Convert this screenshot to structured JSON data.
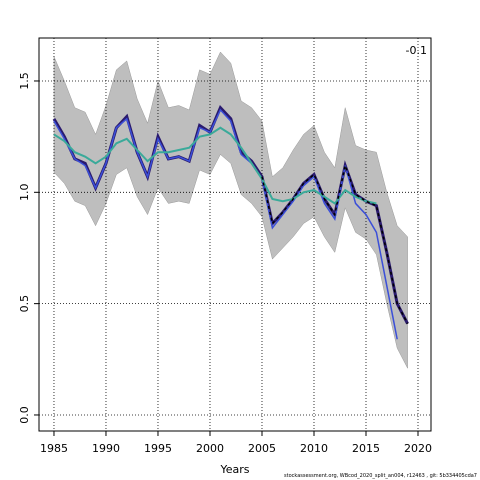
{
  "chart_data": {
    "type": "line",
    "annotation": "-0.1",
    "xlabel": "Years",
    "footer": "stockassessment.org, WBcod_2020_split_an004, r12463 , git: 5b334405cda7",
    "x": [
      1985,
      1986,
      1987,
      1988,
      1989,
      1990,
      1991,
      1992,
      1993,
      1994,
      1995,
      1996,
      1997,
      1998,
      1999,
      2000,
      2001,
      2002,
      2003,
      2004,
      2005,
      2006,
      2007,
      2008,
      2009,
      2010,
      2011,
      2012,
      2013,
      2014,
      2015,
      2016,
      2017,
      2018,
      2019
    ],
    "xlim": [
      1983.56,
      2021.25
    ],
    "xticks": [
      1985,
      1990,
      1995,
      2000,
      2005,
      2010,
      2015,
      2020
    ],
    "ylim": [
      -0.072,
      1.693
    ],
    "yticks": [
      {
        "value": 0,
        "label": "0.0"
      },
      {
        "value": 0.5,
        "label": "0.5"
      },
      {
        "value": 1,
        "label": "1.0"
      },
      {
        "value": 1.5,
        "label": "1.5"
      }
    ],
    "grid": true,
    "band": {
      "color": "#bebebe",
      "upper": [
        1.61,
        1.5,
        1.38,
        1.36,
        1.26,
        1.39,
        1.55,
        1.59,
        1.42,
        1.31,
        1.5,
        1.38,
        1.39,
        1.37,
        1.55,
        1.53,
        1.63,
        1.58,
        1.41,
        1.38,
        1.32,
        1.07,
        1.11,
        1.19,
        1.26,
        1.3,
        1.18,
        1.11,
        1.38,
        1.21,
        1.19,
        1.18,
        1.0,
        0.85,
        0.8
      ],
      "lower": [
        1.09,
        1.04,
        0.96,
        0.94,
        0.85,
        0.95,
        1.08,
        1.11,
        0.98,
        0.9,
        1.02,
        0.95,
        0.96,
        0.95,
        1.1,
        1.08,
        1.17,
        1.13,
        0.99,
        0.95,
        0.89,
        0.7,
        0.75,
        0.8,
        0.86,
        0.89,
        0.8,
        0.73,
        0.93,
        0.82,
        0.79,
        0.72,
        0.5,
        0.3,
        0.21
      ]
    },
    "series": [
      {
        "color": "#2a1a6e",
        "width": 3,
        "dash": false,
        "values": [
          1.33,
          1.25,
          1.15,
          1.13,
          1.02,
          1.13,
          1.29,
          1.34,
          1.18,
          1.07,
          1.25,
          1.15,
          1.16,
          1.14,
          1.3,
          1.27,
          1.38,
          1.33,
          1.18,
          1.14,
          1.07,
          0.86,
          0.91,
          0.97,
          1.04,
          1.08,
          0.97,
          0.9,
          1.12,
          0.99,
          0.96,
          0.94,
          0.73,
          0.5,
          0.41
        ]
      },
      {
        "color": "#3b4fd8",
        "width": 1.5,
        "dash": false,
        "values": [
          1.32,
          1.24,
          1.15,
          1.12,
          1.02,
          1.13,
          1.29,
          1.33,
          1.18,
          1.07,
          1.24,
          1.15,
          1.16,
          1.14,
          1.29,
          1.27,
          1.37,
          1.32,
          1.17,
          1.13,
          1.06,
          0.84,
          0.9,
          0.96,
          1.03,
          1.07,
          0.95,
          0.88,
          1.12,
          0.95,
          0.9,
          0.82,
          0.58,
          0.34,
          null
        ]
      },
      {
        "color": "#3aaa9a",
        "width": 2,
        "dash": false,
        "values": [
          1.26,
          1.23,
          1.18,
          1.16,
          1.13,
          1.16,
          1.22,
          1.24,
          1.19,
          1.14,
          1.18,
          1.18,
          1.19,
          1.2,
          1.25,
          1.26,
          1.29,
          1.26,
          1.2,
          1.13,
          1.06,
          0.97,
          0.96,
          0.97,
          1.0,
          1.01,
          0.98,
          0.95,
          1.01,
          0.98,
          0.96,
          0.95,
          null,
          null,
          null
        ]
      },
      {
        "color": "#000000",
        "width": 1.5,
        "dash": true,
        "values": [
          null,
          null,
          null,
          null,
          null,
          null,
          null,
          null,
          null,
          null,
          null,
          null,
          null,
          null,
          null,
          null,
          null,
          null,
          null,
          null,
          1.07,
          0.86,
          0.91,
          0.97,
          1.04,
          1.08,
          0.97,
          0.9,
          1.12,
          0.99,
          0.96,
          0.94,
          0.73,
          0.5,
          0.41
        ]
      }
    ]
  }
}
